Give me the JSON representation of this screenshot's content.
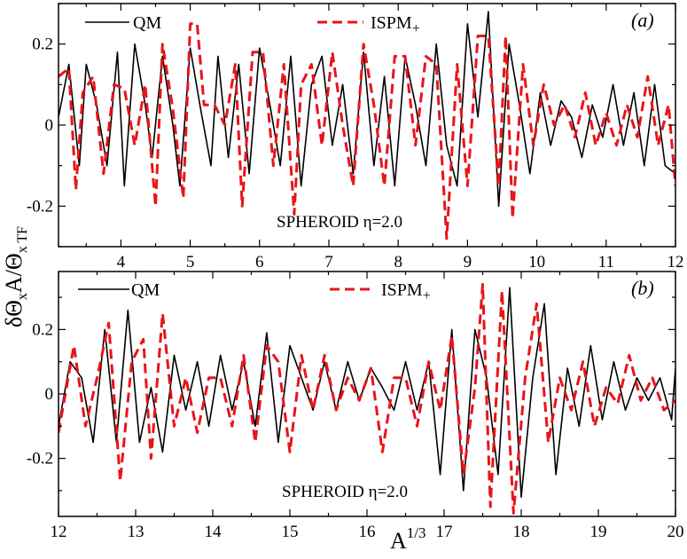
{
  "figure": {
    "shared_ylabel": "δΘ",
    "shared_ylabel_parts": [
      "δΘ",
      "x",
      "A/Θ",
      "x TF"
    ],
    "shared_xlabel": "A",
    "shared_xlabel_sup": "1/3"
  },
  "chart_data": [
    {
      "type": "line",
      "panel_label": "(a)",
      "annotation": "SPHEROID η=2.0",
      "xlabel": "A^{1/3}",
      "ylabel": "δΘ_x A/Θ_x TF",
      "xlim": [
        3.1,
        12
      ],
      "ylim": [
        -0.3,
        0.3
      ],
      "xticks": [
        4,
        5,
        6,
        7,
        8,
        9,
        10,
        11,
        12
      ],
      "xtick_labels": [
        "4",
        "5",
        "6",
        "7",
        "8",
        "9",
        "10",
        "11",
        "12"
      ],
      "yticks": [
        -0.2,
        0,
        0.2
      ],
      "ytick_labels": [
        "-0.2",
        "0",
        "0.2"
      ],
      "legend": [
        {
          "label": "QM",
          "style": "solid",
          "color": "#000000"
        },
        {
          "label": "ISPM",
          "sub": "+",
          "style": "dashed",
          "color": "#e8141a"
        }
      ],
      "series": [
        {
          "name": "QM",
          "color": "#000000",
          "dash": "solid",
          "x": [
            3.1,
            3.25,
            3.4,
            3.5,
            3.65,
            3.8,
            3.95,
            4.05,
            4.2,
            4.35,
            4.45,
            4.6,
            4.75,
            4.85,
            5.0,
            5.15,
            5.3,
            5.4,
            5.55,
            5.7,
            5.85,
            6.0,
            6.15,
            6.3,
            6.45,
            6.6,
            6.75,
            6.9,
            7.05,
            7.2,
            7.35,
            7.5,
            7.65,
            7.8,
            7.95,
            8.1,
            8.25,
            8.4,
            8.55,
            8.7,
            8.85,
            9.0,
            9.15,
            9.3,
            9.45,
            9.6,
            9.75,
            9.9,
            10.05,
            10.2,
            10.35,
            10.5,
            10.65,
            10.8,
            10.95,
            11.1,
            11.25,
            11.4,
            11.55,
            11.7,
            11.85,
            12.0
          ],
          "values": [
            0.02,
            0.15,
            -0.1,
            0.15,
            0.05,
            -0.1,
            0.18,
            -0.15,
            0.2,
            0.05,
            -0.08,
            0.17,
            0.0,
            -0.15,
            0.19,
            0.04,
            -0.1,
            0.17,
            -0.08,
            0.15,
            -0.12,
            0.19,
            0.05,
            -0.1,
            0.17,
            -0.15,
            0.1,
            0.17,
            -0.05,
            0.1,
            -0.12,
            0.18,
            -0.1,
            0.12,
            -0.15,
            0.17,
            0.05,
            -0.1,
            0.2,
            -0.05,
            -0.15,
            0.25,
            0.02,
            0.28,
            -0.2,
            0.2,
            0.05,
            -0.12,
            0.08,
            -0.05,
            0.06,
            0.02,
            -0.08,
            0.05,
            -0.03,
            0.1,
            -0.05,
            0.08,
            -0.1,
            0.1,
            -0.1,
            -0.12
          ]
        },
        {
          "name": "ISPM+",
          "color": "#e8141a",
          "dash": "dashed",
          "x": [
            3.1,
            3.25,
            3.35,
            3.45,
            3.6,
            3.75,
            3.9,
            4.05,
            4.2,
            4.35,
            4.5,
            4.6,
            4.75,
            4.9,
            5.0,
            5.1,
            5.2,
            5.35,
            5.5,
            5.65,
            5.75,
            5.9,
            6.05,
            6.2,
            6.35,
            6.5,
            6.6,
            6.75,
            6.9,
            7.05,
            7.2,
            7.35,
            7.5,
            7.65,
            7.8,
            7.95,
            8.1,
            8.25,
            8.4,
            8.55,
            8.7,
            8.85,
            9.0,
            9.15,
            9.3,
            9.45,
            9.55,
            9.65,
            9.8,
            9.95,
            10.1,
            10.25,
            10.4,
            10.55,
            10.7,
            10.85,
            11.0,
            11.15,
            11.3,
            11.45,
            11.6,
            11.75,
            11.9,
            12.0
          ],
          "values": [
            0.12,
            0.14,
            -0.16,
            0.08,
            0.12,
            -0.12,
            0.1,
            0.09,
            -0.05,
            0.1,
            -0.2,
            0.2,
            0.04,
            -0.18,
            0.25,
            0.25,
            0.05,
            0.05,
            0.0,
            0.15,
            -0.2,
            0.18,
            0.18,
            -0.1,
            0.15,
            -0.22,
            0.1,
            0.15,
            -0.05,
            0.18,
            0.0,
            -0.15,
            0.2,
            0.05,
            -0.15,
            0.17,
            0.17,
            -0.05,
            0.17,
            0.15,
            -0.28,
            0.15,
            -0.15,
            0.22,
            0.22,
            -0.15,
            0.22,
            -0.23,
            0.15,
            -0.05,
            0.1,
            0.0,
            0.05,
            -0.03,
            0.08,
            -0.05,
            0.03,
            -0.05,
            0.05,
            -0.03,
            0.12,
            -0.05,
            0.05,
            -0.15
          ]
        }
      ]
    },
    {
      "type": "line",
      "panel_label": "(b)",
      "annotation": "SPHEROID η=2.0",
      "xlabel": "A^{1/3}",
      "ylabel": "δΘ_x A/Θ_x TF",
      "xlim": [
        12,
        20
      ],
      "ylim": [
        -0.38,
        0.38
      ],
      "xticks": [
        12,
        13,
        14,
        15,
        16,
        17,
        18,
        19,
        20
      ],
      "xtick_labels": [
        "12",
        "13",
        "14",
        "15",
        "16",
        "17",
        "18",
        "19",
        "20"
      ],
      "yticks": [
        -0.2,
        0,
        0.2
      ],
      "ytick_labels": [
        "-0.2",
        "0",
        "0.2"
      ],
      "legend": [
        {
          "label": "QM",
          "style": "solid",
          "color": "#000000"
        },
        {
          "label": "ISPM",
          "sub": "+",
          "style": "dashed",
          "color": "#e8141a"
        }
      ],
      "series": [
        {
          "name": "QM",
          "color": "#000000",
          "dash": "solid",
          "x": [
            12.0,
            12.15,
            12.3,
            12.45,
            12.6,
            12.75,
            12.9,
            13.05,
            13.2,
            13.35,
            13.5,
            13.65,
            13.8,
            13.95,
            14.1,
            14.25,
            14.4,
            14.55,
            14.7,
            14.85,
            15.0,
            15.15,
            15.3,
            15.45,
            15.6,
            15.75,
            15.9,
            16.05,
            16.2,
            16.35,
            16.5,
            16.65,
            16.8,
            16.95,
            17.1,
            17.25,
            17.4,
            17.55,
            17.7,
            17.85,
            18.0,
            18.15,
            18.3,
            18.45,
            18.6,
            18.75,
            18.9,
            19.05,
            19.2,
            19.35,
            19.5,
            19.65,
            19.8,
            19.95,
            20.0
          ],
          "values": [
            -0.1,
            0.1,
            0.05,
            -0.15,
            0.2,
            -0.15,
            0.26,
            -0.15,
            0.02,
            -0.18,
            0.12,
            -0.05,
            0.1,
            -0.1,
            0.12,
            -0.05,
            0.1,
            -0.1,
            0.19,
            -0.15,
            0.15,
            0.05,
            -0.05,
            0.1,
            -0.05,
            0.1,
            -0.02,
            0.08,
            0.02,
            -0.05,
            0.1,
            -0.05,
            0.1,
            -0.25,
            0.2,
            -0.3,
            0.2,
            0.05,
            -0.25,
            0.33,
            -0.32,
            0.05,
            0.28,
            -0.25,
            0.08,
            -0.1,
            0.15,
            -0.08,
            0.1,
            -0.05,
            0.05,
            -0.02,
            0.05,
            -0.08,
            0.08
          ]
        },
        {
          "name": "ISPM+",
          "color": "#e8141a",
          "dash": "dashed",
          "x": [
            12.0,
            12.2,
            12.35,
            12.5,
            12.65,
            12.8,
            12.95,
            13.1,
            13.2,
            13.35,
            13.5,
            13.65,
            13.8,
            13.95,
            14.1,
            14.25,
            14.4,
            14.55,
            14.7,
            14.85,
            15.0,
            15.15,
            15.3,
            15.45,
            15.6,
            15.75,
            15.9,
            16.05,
            16.2,
            16.35,
            16.5,
            16.65,
            16.8,
            16.95,
            17.1,
            17.25,
            17.4,
            17.5,
            17.6,
            17.75,
            17.9,
            18.05,
            18.2,
            18.35,
            18.5,
            18.65,
            18.8,
            18.95,
            19.1,
            19.25,
            19.4,
            19.55,
            19.7,
            19.85,
            20.0
          ],
          "values": [
            -0.12,
            0.15,
            -0.1,
            0.05,
            0.22,
            -0.27,
            0.1,
            0.17,
            -0.2,
            0.25,
            -0.1,
            0.05,
            -0.12,
            0.05,
            0.05,
            -0.1,
            0.12,
            -0.15,
            0.15,
            0.1,
            -0.18,
            0.12,
            -0.05,
            0.12,
            -0.05,
            0.05,
            -0.02,
            0.08,
            -0.18,
            0.05,
            0.05,
            -0.1,
            0.1,
            -0.05,
            0.18,
            -0.25,
            0.02,
            0.34,
            -0.35,
            0.32,
            -0.37,
            0.05,
            0.28,
            -0.15,
            0.05,
            -0.05,
            0.1,
            -0.1,
            0.02,
            -0.03,
            0.12,
            -0.02,
            0.05,
            -0.05,
            -0.02
          ]
        }
      ]
    }
  ]
}
